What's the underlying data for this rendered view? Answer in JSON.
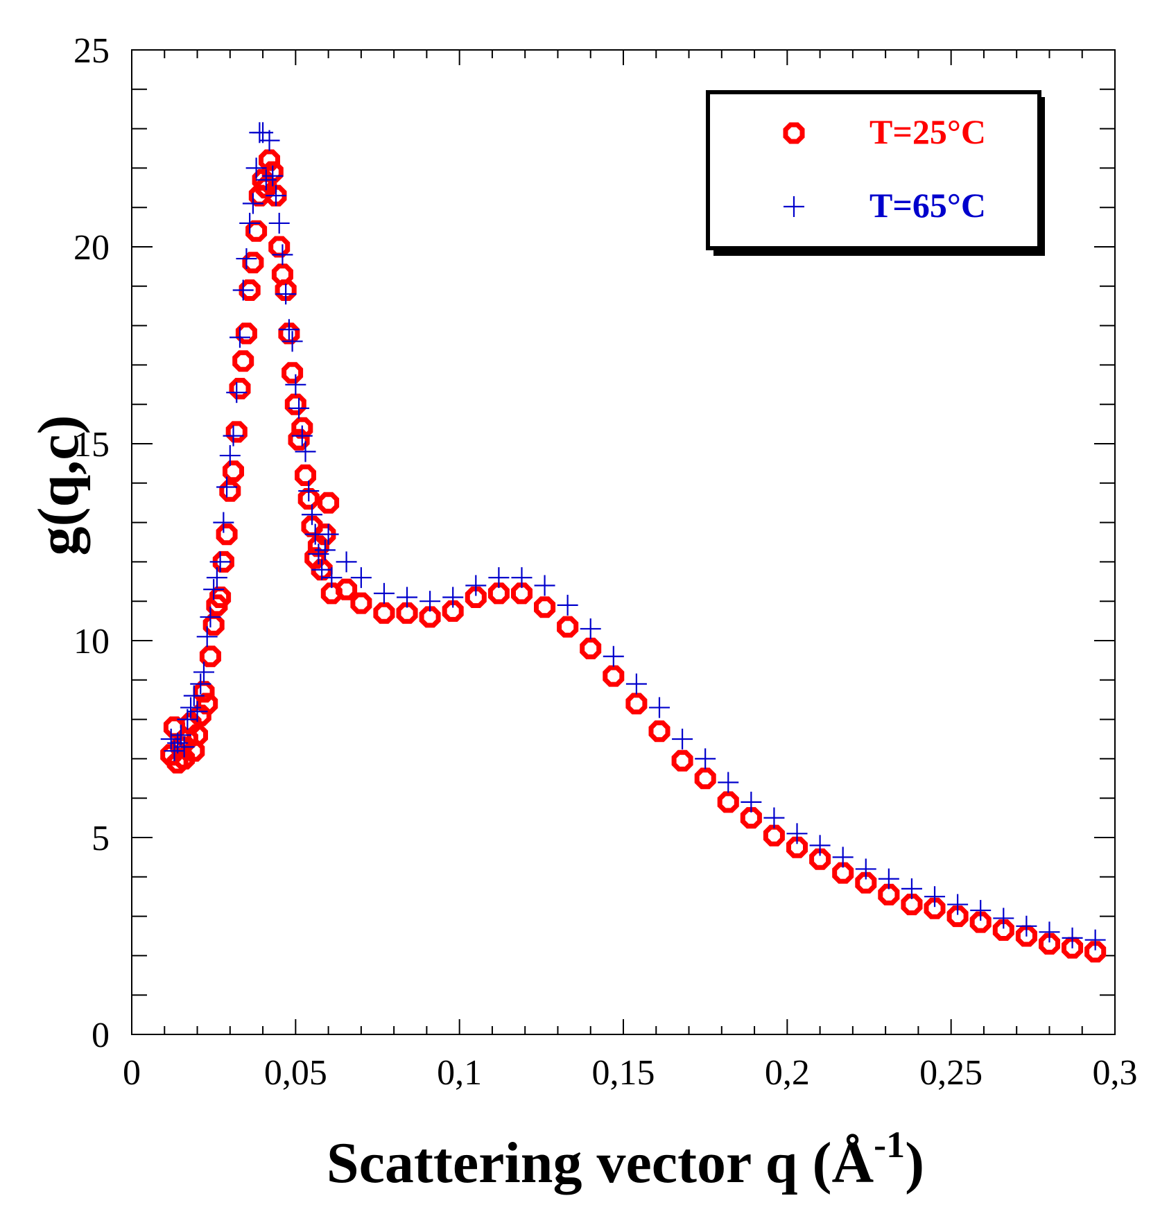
{
  "chart_data": {
    "type": "scatter",
    "xlabel": "Scattering  vector q (Å",
    "xlabel_sup": "-1",
    "xlabel_close": ")",
    "ylabel": "g(q,c)",
    "xlim": [
      0,
      0.3
    ],
    "ylim": [
      0,
      25
    ],
    "x_ticks": [
      {
        "value": 0,
        "label": "0"
      },
      {
        "value": 0.05,
        "label": "0,05"
      },
      {
        "value": 0.1,
        "label": "0,1"
      },
      {
        "value": 0.15,
        "label": "0,15"
      },
      {
        "value": 0.2,
        "label": "0,2"
      },
      {
        "value": 0.25,
        "label": "0,25"
      },
      {
        "value": 0.3,
        "label": "0,3"
      }
    ],
    "y_ticks": [
      {
        "value": 0,
        "label": "0"
      },
      {
        "value": 5,
        "label": "5"
      },
      {
        "value": 10,
        "label": "10"
      },
      {
        "value": 15,
        "label": "15"
      },
      {
        "value": 20,
        "label": "20"
      },
      {
        "value": 25,
        "label": "25"
      }
    ],
    "grid": false,
    "legend_position": "top-right",
    "series": [
      {
        "name": "T=25°C",
        "marker": "open-octagon",
        "color": "#ff0000",
        "points": [
          [
            0.012,
            7.1
          ],
          [
            0.013,
            7.8
          ],
          [
            0.014,
            6.9
          ],
          [
            0.015,
            7.3
          ],
          [
            0.016,
            7.0
          ],
          [
            0.017,
            7.5
          ],
          [
            0.018,
            7.9
          ],
          [
            0.019,
            7.2
          ],
          [
            0.02,
            7.6
          ],
          [
            0.021,
            8.1
          ],
          [
            0.022,
            8.7
          ],
          [
            0.023,
            8.4
          ],
          [
            0.024,
            9.6
          ],
          [
            0.025,
            10.4
          ],
          [
            0.026,
            10.9
          ],
          [
            0.027,
            11.1
          ],
          [
            0.028,
            12.0
          ],
          [
            0.029,
            12.7
          ],
          [
            0.03,
            13.8
          ],
          [
            0.031,
            14.3
          ],
          [
            0.032,
            15.3
          ],
          [
            0.033,
            16.4
          ],
          [
            0.034,
            17.1
          ],
          [
            0.035,
            17.8
          ],
          [
            0.036,
            18.9
          ],
          [
            0.037,
            19.6
          ],
          [
            0.038,
            20.4
          ],
          [
            0.039,
            21.3
          ],
          [
            0.04,
            21.7
          ],
          [
            0.041,
            21.5
          ],
          [
            0.042,
            22.2
          ],
          [
            0.043,
            21.9
          ],
          [
            0.044,
            21.3
          ],
          [
            0.045,
            20.0
          ],
          [
            0.046,
            19.3
          ],
          [
            0.047,
            18.9
          ],
          [
            0.048,
            17.8
          ],
          [
            0.049,
            16.8
          ],
          [
            0.05,
            16.0
          ],
          [
            0.051,
            15.1
          ],
          [
            0.052,
            15.4
          ],
          [
            0.053,
            14.2
          ],
          [
            0.054,
            13.6
          ],
          [
            0.055,
            12.9
          ],
          [
            0.056,
            12.1
          ],
          [
            0.057,
            12.4
          ],
          [
            0.058,
            11.8
          ],
          [
            0.059,
            12.7
          ],
          [
            0.06,
            13.5
          ],
          [
            0.061,
            11.2
          ],
          [
            0.0655,
            11.3
          ],
          [
            0.07,
            10.95
          ],
          [
            0.077,
            10.7
          ],
          [
            0.084,
            10.7
          ],
          [
            0.091,
            10.6
          ],
          [
            0.098,
            10.75
          ],
          [
            0.105,
            11.1
          ],
          [
            0.112,
            11.2
          ],
          [
            0.119,
            11.2
          ],
          [
            0.126,
            10.85
          ],
          [
            0.133,
            10.35
          ],
          [
            0.14,
            9.8
          ],
          [
            0.147,
            9.1
          ],
          [
            0.154,
            8.4
          ],
          [
            0.161,
            7.7
          ],
          [
            0.168,
            6.95
          ],
          [
            0.175,
            6.5
          ],
          [
            0.182,
            5.9
          ],
          [
            0.189,
            5.5
          ],
          [
            0.196,
            5.05
          ],
          [
            0.203,
            4.75
          ],
          [
            0.21,
            4.45
          ],
          [
            0.217,
            4.1
          ],
          [
            0.224,
            3.85
          ],
          [
            0.231,
            3.55
          ],
          [
            0.238,
            3.3
          ],
          [
            0.245,
            3.2
          ],
          [
            0.252,
            3.0
          ],
          [
            0.259,
            2.85
          ],
          [
            0.266,
            2.65
          ],
          [
            0.273,
            2.5
          ],
          [
            0.28,
            2.3
          ],
          [
            0.287,
            2.2
          ],
          [
            0.294,
            2.1
          ]
        ]
      },
      {
        "name": "T=65°C",
        "marker": "plus",
        "color": "#0000cc",
        "points": [
          [
            0.012,
            7.5
          ],
          [
            0.013,
            7.2
          ],
          [
            0.014,
            7.4
          ],
          [
            0.015,
            7.6
          ],
          [
            0.016,
            7.3
          ],
          [
            0.017,
            8.0
          ],
          [
            0.018,
            8.3
          ],
          [
            0.019,
            8.6
          ],
          [
            0.02,
            8.2
          ],
          [
            0.021,
            8.9
          ],
          [
            0.022,
            9.2
          ],
          [
            0.023,
            10.1
          ],
          [
            0.024,
            10.6
          ],
          [
            0.025,
            11.3
          ],
          [
            0.026,
            11.6
          ],
          [
            0.027,
            12.0
          ],
          [
            0.028,
            13.0
          ],
          [
            0.029,
            13.9
          ],
          [
            0.03,
            14.7
          ],
          [
            0.031,
            15.2
          ],
          [
            0.032,
            16.3
          ],
          [
            0.033,
            17.7
          ],
          [
            0.034,
            18.9
          ],
          [
            0.035,
            19.7
          ],
          [
            0.036,
            20.6
          ],
          [
            0.037,
            21.1
          ],
          [
            0.038,
            22.0
          ],
          [
            0.039,
            22.9
          ],
          [
            0.04,
            22.9
          ],
          [
            0.041,
            21.7
          ],
          [
            0.042,
            22.7
          ],
          [
            0.043,
            21.8
          ],
          [
            0.044,
            21.3
          ],
          [
            0.045,
            20.6
          ],
          [
            0.046,
            19.8
          ],
          [
            0.047,
            18.8
          ],
          [
            0.048,
            17.9
          ],
          [
            0.049,
            17.6
          ],
          [
            0.05,
            16.5
          ],
          [
            0.051,
            15.9
          ],
          [
            0.052,
            15.2
          ],
          [
            0.053,
            14.8
          ],
          [
            0.054,
            13.8
          ],
          [
            0.055,
            13.2
          ],
          [
            0.056,
            12.7
          ],
          [
            0.057,
            12.2
          ],
          [
            0.058,
            11.8
          ],
          [
            0.059,
            12.3
          ],
          [
            0.06,
            12.7
          ],
          [
            0.061,
            11.6
          ],
          [
            0.0655,
            12.0
          ],
          [
            0.07,
            11.6
          ],
          [
            0.077,
            11.2
          ],
          [
            0.084,
            11.1
          ],
          [
            0.091,
            11.0
          ],
          [
            0.098,
            11.1
          ],
          [
            0.105,
            11.4
          ],
          [
            0.112,
            11.6
          ],
          [
            0.119,
            11.6
          ],
          [
            0.126,
            11.4
          ],
          [
            0.133,
            10.9
          ],
          [
            0.14,
            10.3
          ],
          [
            0.147,
            9.6
          ],
          [
            0.154,
            8.9
          ],
          [
            0.161,
            8.3
          ],
          [
            0.168,
            7.5
          ],
          [
            0.175,
            7.0
          ],
          [
            0.182,
            6.4
          ],
          [
            0.189,
            5.9
          ],
          [
            0.196,
            5.5
          ],
          [
            0.203,
            5.1
          ],
          [
            0.21,
            4.8
          ],
          [
            0.217,
            4.5
          ],
          [
            0.224,
            4.2
          ],
          [
            0.231,
            3.95
          ],
          [
            0.238,
            3.7
          ],
          [
            0.245,
            3.5
          ],
          [
            0.252,
            3.3
          ],
          [
            0.259,
            3.15
          ],
          [
            0.266,
            2.95
          ],
          [
            0.273,
            2.75
          ],
          [
            0.28,
            2.6
          ],
          [
            0.287,
            2.45
          ],
          [
            0.294,
            2.4
          ]
        ]
      }
    ]
  }
}
